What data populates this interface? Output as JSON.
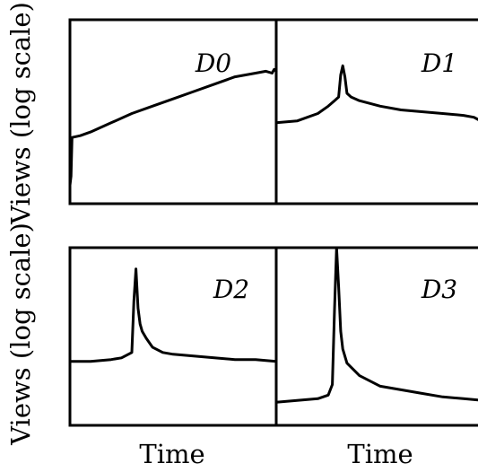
{
  "chart_data": {
    "type": "line",
    "yscale": "log",
    "grid": false,
    "ylabel_top": "Views (log scale)",
    "ylabel_bottom": "Views (log scale)",
    "xlabel_left": "Time",
    "xlabel_right": "Time",
    "panels": [
      {
        "label": "D0",
        "ylim": [
          0,
          1
        ],
        "x": [
          0,
          0.005,
          0.01,
          0.05,
          0.1,
          0.2,
          0.3,
          0.4,
          0.5,
          0.6,
          0.7,
          0.8,
          0.9,
          0.95,
          0.98,
          0.99,
          1.0
        ],
        "y": [
          0.1,
          0.15,
          0.36,
          0.37,
          0.39,
          0.44,
          0.49,
          0.53,
          0.57,
          0.61,
          0.65,
          0.69,
          0.71,
          0.72,
          0.71,
          0.73,
          0.72
        ]
      },
      {
        "label": "D1",
        "ylim": [
          0,
          1
        ],
        "x": [
          0,
          0.1,
          0.2,
          0.25,
          0.28,
          0.3,
          0.31,
          0.32,
          0.33,
          0.34,
          0.36,
          0.4,
          0.5,
          0.6,
          0.7,
          0.8,
          0.9,
          0.95,
          1.0
        ],
        "y": [
          0.44,
          0.45,
          0.49,
          0.53,
          0.56,
          0.58,
          0.7,
          0.75,
          0.69,
          0.6,
          0.58,
          0.56,
          0.53,
          0.51,
          0.5,
          0.49,
          0.48,
          0.47,
          0.44
        ]
      },
      {
        "label": "D2",
        "ylim": [
          0,
          1
        ],
        "x": [
          0,
          0.1,
          0.2,
          0.25,
          0.3,
          0.31,
          0.32,
          0.33,
          0.34,
          0.35,
          0.37,
          0.4,
          0.45,
          0.5,
          0.6,
          0.7,
          0.8,
          0.9,
          1.0
        ],
        "y": [
          0.36,
          0.36,
          0.37,
          0.38,
          0.41,
          0.7,
          0.88,
          0.66,
          0.57,
          0.53,
          0.49,
          0.44,
          0.41,
          0.4,
          0.39,
          0.38,
          0.37,
          0.37,
          0.36
        ]
      },
      {
        "label": "D3",
        "ylim": [
          0,
          1
        ],
        "x": [
          0,
          0.1,
          0.2,
          0.25,
          0.27,
          0.28,
          0.29,
          0.3,
          0.31,
          0.32,
          0.34,
          0.4,
          0.5,
          0.6,
          0.7,
          0.8,
          0.9,
          1.0
        ],
        "y": [
          0.13,
          0.14,
          0.15,
          0.17,
          0.23,
          0.65,
          1.0,
          0.78,
          0.53,
          0.43,
          0.35,
          0.28,
          0.22,
          0.2,
          0.18,
          0.16,
          0.15,
          0.14
        ]
      }
    ]
  }
}
